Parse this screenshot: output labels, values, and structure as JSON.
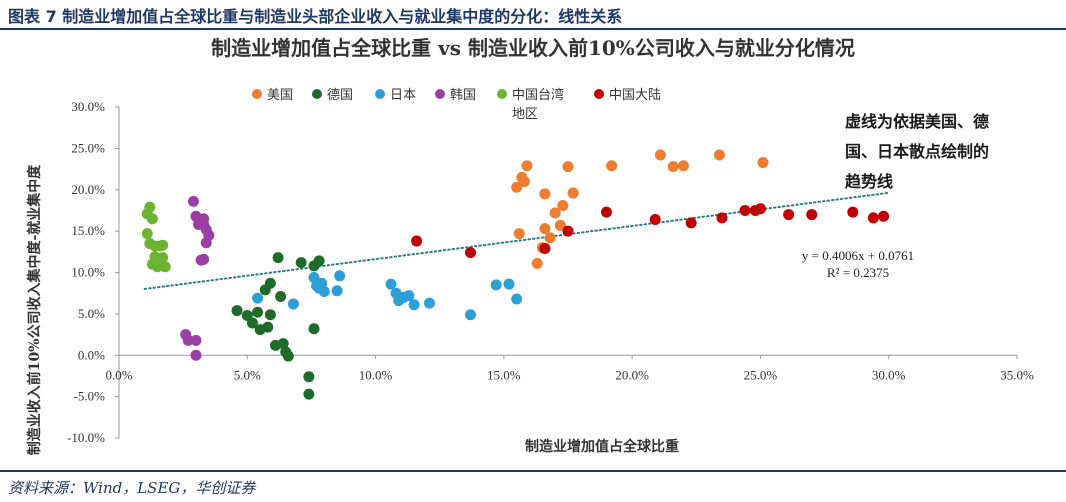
{
  "header": {
    "figure_title": "图表 7  制造业增加值占全球比重与制造业头部企业收入与就业集中度的分化：线性关系"
  },
  "footer": {
    "source": "资料来源：Wind，LSEG，华创证券"
  },
  "colors": {
    "美国": "#ed7d31",
    "德国": "#1e6b2a",
    "日本": "#2e9fd6",
    "韩国": "#9b3fa5",
    "中国台湾地区": "#6bb330",
    "中国大陆": "#c00000",
    "trendline": "#2a7a8c"
  },
  "chart_data": {
    "type": "scatter",
    "title": "制造业增加值占全球比重 vs 制造业收入前10%公司收入与就业分化情况",
    "xlabel": "制造业增加值占全球比重",
    "ylabel": "制造业收入前10%公司收入集中度-就业集中度",
    "xlim": [
      0,
      0.35
    ],
    "ylim": [
      -0.1,
      0.3
    ],
    "x_ticks": [
      "0.0%",
      "5.0%",
      "10.0%",
      "15.0%",
      "20.0%",
      "25.0%",
      "30.0%",
      "35.0%"
    ],
    "y_ticks": [
      "-10.0%",
      "-5.0%",
      "0.0%",
      "5.0%",
      "10.0%",
      "15.0%",
      "20.0%",
      "25.0%",
      "30.0%"
    ],
    "legend_position": "top-center",
    "grid": false,
    "trendline": {
      "slope": 0.4006,
      "intercept": 0.0761,
      "x_range": [
        0.01,
        0.3
      ],
      "style": "dotted"
    },
    "equation": "y = 0.4006x + 0.0761",
    "r_squared": "R² = 0.2375",
    "annotation_lines": [
      "虚线为依据美国、德",
      "国、日本散点绘制的",
      "趋势线"
    ],
    "series": [
      {
        "name": "美国",
        "points": [
          [
            0.155,
            0.203
          ],
          [
            0.157,
            0.215
          ],
          [
            0.158,
            0.21
          ],
          [
            0.159,
            0.229
          ],
          [
            0.156,
            0.147
          ],
          [
            0.163,
            0.111
          ],
          [
            0.165,
            0.13
          ],
          [
            0.166,
            0.153
          ],
          [
            0.166,
            0.195
          ],
          [
            0.168,
            0.142
          ],
          [
            0.17,
            0.172
          ],
          [
            0.172,
            0.157
          ],
          [
            0.173,
            0.181
          ],
          [
            0.175,
            0.228
          ],
          [
            0.177,
            0.196
          ],
          [
            0.192,
            0.229
          ],
          [
            0.211,
            0.242
          ],
          [
            0.216,
            0.228
          ],
          [
            0.22,
            0.229
          ],
          [
            0.234,
            0.242
          ],
          [
            0.251,
            0.233
          ]
        ]
      },
      {
        "name": "德国",
        "points": [
          [
            0.046,
            0.054
          ],
          [
            0.05,
            0.048
          ],
          [
            0.052,
            0.039
          ],
          [
            0.054,
            0.052
          ],
          [
            0.055,
            0.031
          ],
          [
            0.057,
            0.079
          ],
          [
            0.058,
            0.034
          ],
          [
            0.059,
            0.049
          ],
          [
            0.059,
            0.087
          ],
          [
            0.061,
            0.012
          ],
          [
            0.062,
            0.118
          ],
          [
            0.063,
            0.071
          ],
          [
            0.064,
            0.014
          ],
          [
            0.065,
            0.004
          ],
          [
            0.066,
            -0.001
          ],
          [
            0.071,
            0.112
          ],
          [
            0.074,
            -0.026
          ],
          [
            0.074,
            -0.047
          ],
          [
            0.076,
            0.032
          ],
          [
            0.076,
            0.108
          ],
          [
            0.078,
            0.114
          ]
        ]
      },
      {
        "name": "日本",
        "points": [
          [
            0.054,
            0.069
          ],
          [
            0.068,
            0.062
          ],
          [
            0.076,
            0.094
          ],
          [
            0.077,
            0.084
          ],
          [
            0.078,
            0.081
          ],
          [
            0.079,
            0.087
          ],
          [
            0.08,
            0.077
          ],
          [
            0.085,
            0.078
          ],
          [
            0.086,
            0.096
          ],
          [
            0.106,
            0.086
          ],
          [
            0.108,
            0.075
          ],
          [
            0.109,
            0.066
          ],
          [
            0.111,
            0.07
          ],
          [
            0.113,
            0.072
          ],
          [
            0.115,
            0.061
          ],
          [
            0.121,
            0.063
          ],
          [
            0.137,
            0.049
          ],
          [
            0.147,
            0.085
          ],
          [
            0.152,
            0.086
          ],
          [
            0.155,
            0.068
          ]
        ]
      },
      {
        "name": "韩国",
        "points": [
          [
            0.026,
            0.025
          ],
          [
            0.027,
            0.018
          ],
          [
            0.029,
            0.186
          ],
          [
            0.03,
            0.018
          ],
          [
            0.03,
            0.0
          ],
          [
            0.03,
            0.168
          ],
          [
            0.031,
            0.158
          ],
          [
            0.032,
            0.115
          ],
          [
            0.033,
            0.165
          ],
          [
            0.033,
            0.158
          ],
          [
            0.033,
            0.116
          ],
          [
            0.034,
            0.136
          ],
          [
            0.034,
            0.152
          ],
          [
            0.035,
            0.145
          ]
        ]
      },
      {
        "name": "中国台湾地区",
        "points": [
          [
            0.011,
            0.147
          ],
          [
            0.011,
            0.171
          ],
          [
            0.012,
            0.179
          ],
          [
            0.012,
            0.135
          ],
          [
            0.013,
            0.11
          ],
          [
            0.013,
            0.165
          ],
          [
            0.014,
            0.132
          ],
          [
            0.014,
            0.119
          ],
          [
            0.015,
            0.107
          ],
          [
            0.016,
            0.132
          ],
          [
            0.016,
            0.115
          ],
          [
            0.017,
            0.133
          ],
          [
            0.017,
            0.118
          ],
          [
            0.018,
            0.107
          ]
        ]
      },
      {
        "name": "中国大陆",
        "points": [
          [
            0.116,
            0.138
          ],
          [
            0.137,
            0.124
          ],
          [
            0.166,
            0.129
          ],
          [
            0.175,
            0.15
          ],
          [
            0.19,
            0.173
          ],
          [
            0.209,
            0.164
          ],
          [
            0.223,
            0.16
          ],
          [
            0.235,
            0.166
          ],
          [
            0.244,
            0.175
          ],
          [
            0.248,
            0.175
          ],
          [
            0.25,
            0.177
          ],
          [
            0.261,
            0.17
          ],
          [
            0.27,
            0.17
          ],
          [
            0.286,
            0.173
          ],
          [
            0.294,
            0.166
          ],
          [
            0.298,
            0.168
          ]
        ]
      }
    ]
  }
}
